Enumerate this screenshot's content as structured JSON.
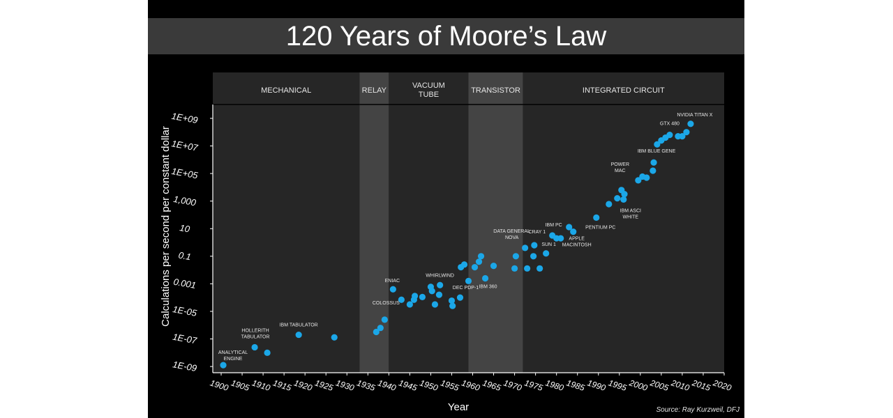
{
  "title": "120 Years of Moore’s Law",
  "chart_data": {
    "type": "scatter",
    "title": "120 Years of Moore’s Law",
    "xlabel": "Year",
    "ylabel": "Calculations per second per constant dollar",
    "y_scale": "log",
    "xlim": [
      1898,
      2020
    ],
    "ylim_log10": [
      -9.5,
      9.5
    ],
    "grid": false,
    "source": "Source: Ray Kurzweil, DFJ",
    "x_ticks": [
      "1900",
      "1905",
      "1910",
      "1915",
      "1920",
      "1925",
      "1930",
      "1935",
      "1940",
      "1945",
      "1950",
      "1955",
      "1960",
      "1965",
      "1970",
      "1975",
      "1980",
      "1985",
      "1990",
      "1995",
      "2000",
      "2005",
      "2010",
      "2015",
      "2020"
    ],
    "y_ticks": [
      "1E-09",
      "1E-07",
      "1E-05",
      "0.001",
      "0.1",
      "10",
      "1,000",
      "1E+05",
      "1E+07",
      "1E+09"
    ],
    "eras": [
      {
        "label": "MECHANICAL",
        "start": 1898,
        "end": 1933,
        "color": "#262626"
      },
      {
        "label": "RELAY",
        "start": 1933,
        "end": 1940,
        "color": "#444444"
      },
      {
        "label": "VACUUM TUBE",
        "start": 1940,
        "end": 1959,
        "color": "#262626"
      },
      {
        "label": "TRANSISTOR",
        "start": 1959,
        "end": 1972,
        "color": "#444444"
      },
      {
        "label": "INTEGRATED CIRCUIT",
        "start": 1972,
        "end": 2020,
        "color": "#262626"
      }
    ],
    "points": [
      {
        "x": 1900.5,
        "y": 1.26e-09,
        "label": "ANALYTICAL ENGINE"
      },
      {
        "x": 1908,
        "y": 2.5e-08,
        "label": "HOLLERITH TABULATOR"
      },
      {
        "x": 1911,
        "y": 1e-08
      },
      {
        "x": 1918.5,
        "y": 2e-07,
        "label": "IBM TABULATOR"
      },
      {
        "x": 1927,
        "y": 1.3e-07
      },
      {
        "x": 1937,
        "y": 3.2e-07
      },
      {
        "x": 1938,
        "y": 6.3e-07
      },
      {
        "x": 1939,
        "y": 2.5e-06,
        "label": "COLOSSUS"
      },
      {
        "x": 1941,
        "y": 0.0004,
        "label": "ENIAC"
      },
      {
        "x": 1943,
        "y": 7e-05
      },
      {
        "x": 1945,
        "y": 3.2e-05
      },
      {
        "x": 1946,
        "y": 7e-05
      },
      {
        "x": 1946.2,
        "y": 0.00013
      },
      {
        "x": 1948,
        "y": 0.00011
      },
      {
        "x": 1950,
        "y": 0.0006
      },
      {
        "x": 1950.3,
        "y": 0.0003
      },
      {
        "x": 1951,
        "y": 3.2e-05
      },
      {
        "x": 1952,
        "y": 0.00016
      },
      {
        "x": 1952.2,
        "y": 0.0008,
        "label": "WHIRLWIND"
      },
      {
        "x": 1955,
        "y": 6e-05
      },
      {
        "x": 1955.2,
        "y": 2.5e-05
      },
      {
        "x": 1957,
        "y": 0.0001,
        "label": "DEC PDP-1"
      },
      {
        "x": 1957.2,
        "y": 0.016
      },
      {
        "x": 1958,
        "y": 0.025
      },
      {
        "x": 1959,
        "y": 0.0016
      },
      {
        "x": 1960.5,
        "y": 0.016
      },
      {
        "x": 1961.5,
        "y": 0.04
      },
      {
        "x": 1962,
        "y": 0.1
      },
      {
        "x": 1963,
        "y": 0.0025,
        "label": "IBM 360"
      },
      {
        "x": 1965,
        "y": 0.02
      },
      {
        "x": 1970,
        "y": 0.013
      },
      {
        "x": 1970.3,
        "y": 0.1
      },
      {
        "x": 1972.5,
        "y": 0.4,
        "label": "DATA GENERAL NOVA"
      },
      {
        "x": 1973,
        "y": 0.013
      },
      {
        "x": 1974.5,
        "y": 0.1
      },
      {
        "x": 1974.7,
        "y": 0.63,
        "label": "CRAY 1"
      },
      {
        "x": 1976,
        "y": 0.013
      },
      {
        "x": 1977.5,
        "y": 0.16,
        "label": "SUN 1"
      },
      {
        "x": 1979,
        "y": 3.2,
        "label": "IBM PC"
      },
      {
        "x": 1980,
        "y": 2
      },
      {
        "x": 1981,
        "y": 2
      },
      {
        "x": 1983,
        "y": 13
      },
      {
        "x": 1984,
        "y": 6,
        "label": "APPLE MACINTOSH"
      },
      {
        "x": 1989.5,
        "y": 63,
        "label": "PENTIUM PC"
      },
      {
        "x": 1992.5,
        "y": 600
      },
      {
        "x": 1994.5,
        "y": 1600
      },
      {
        "x": 1995.5,
        "y": 6300,
        "label": "POWER MAC"
      },
      {
        "x": 1996,
        "y": 1300,
        "label": "IBM ASCI WHITE"
      },
      {
        "x": 1996.2,
        "y": 3200
      },
      {
        "x": 1999.5,
        "y": 32000
      },
      {
        "x": 2000.5,
        "y": 60000
      },
      {
        "x": 2001.5,
        "y": 50000
      },
      {
        "x": 2003,
        "y": 160000
      },
      {
        "x": 2003.2,
        "y": 630000,
        "label": "IBM BLUE GENE"
      },
      {
        "x": 2004,
        "y": 13000000
      },
      {
        "x": 2005,
        "y": 25000000
      },
      {
        "x": 2006,
        "y": 40000000
      },
      {
        "x": 2007,
        "y": 63000000,
        "label": "GTX 480"
      },
      {
        "x": 2009,
        "y": 50000000
      },
      {
        "x": 2010,
        "y": 50000000
      },
      {
        "x": 2011,
        "y": 100000000
      },
      {
        "x": 2012,
        "y": 400000000,
        "label": "NVIDIA TITAN X"
      }
    ]
  }
}
